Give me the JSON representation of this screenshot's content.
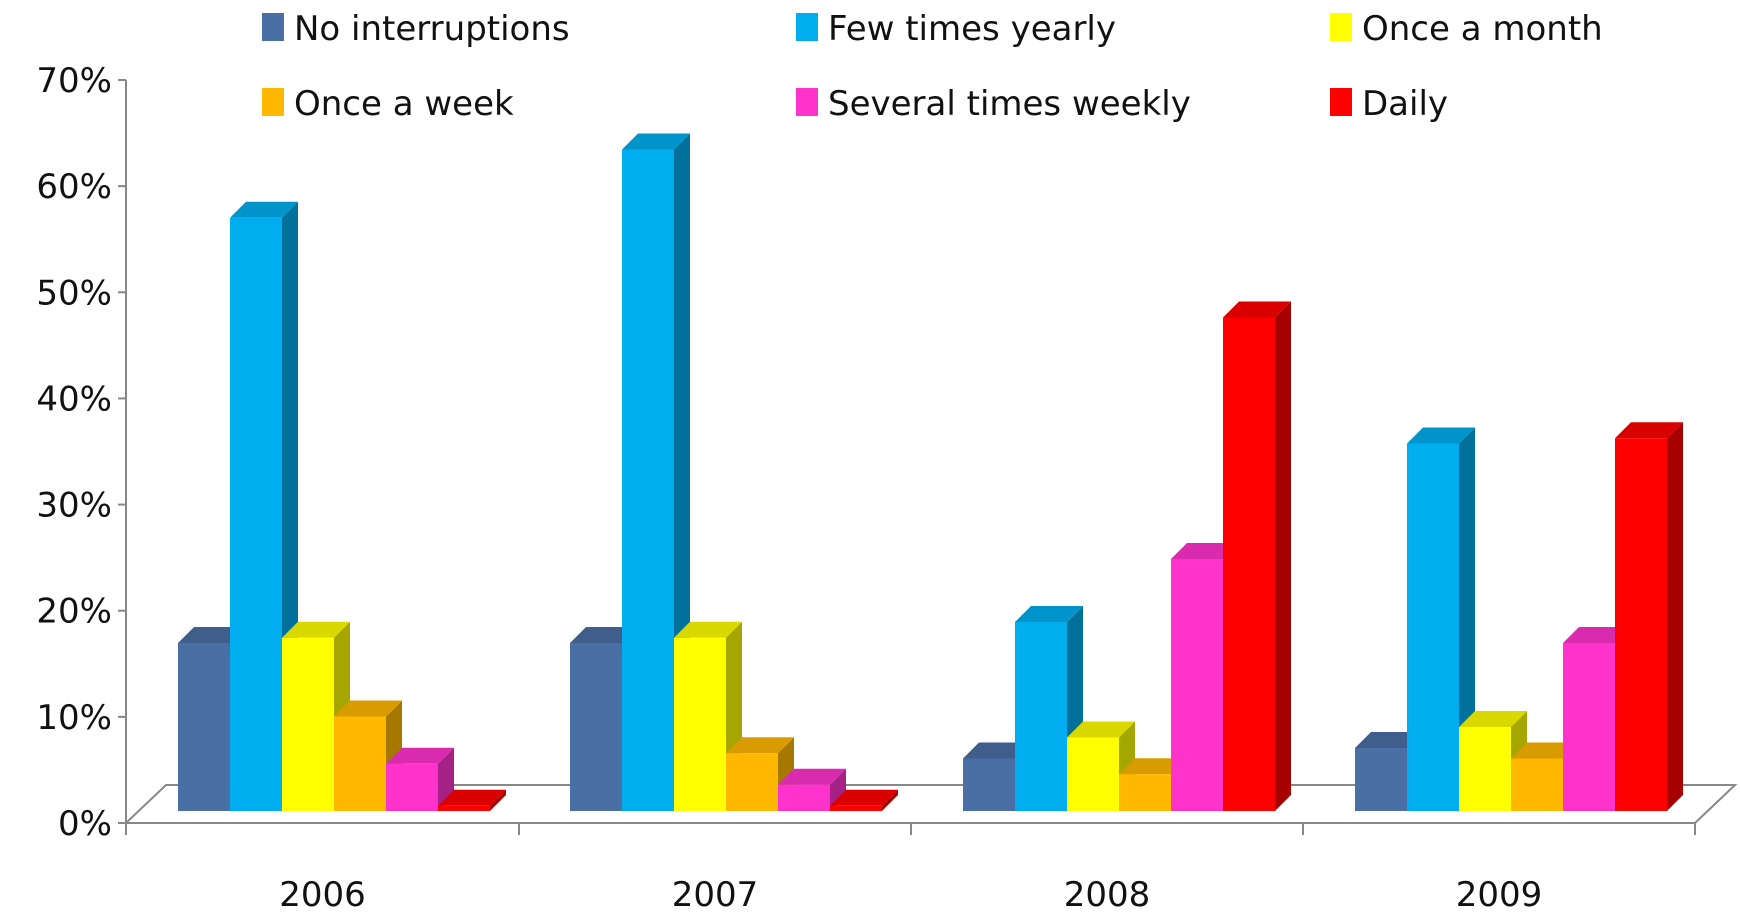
{
  "chart_data": {
    "type": "bar",
    "title": "",
    "xlabel": "",
    "ylabel": "",
    "categories": [
      "2006",
      "2007",
      "2008",
      "2009"
    ],
    "ylim": [
      0,
      70
    ],
    "yticks": [
      "0%",
      "10%",
      "20%",
      "30%",
      "40%",
      "50%",
      "60%",
      "70%"
    ],
    "grid": false,
    "legend_position": "top",
    "series": [
      {
        "name": "No interruptions",
        "color": "#4a6fa5",
        "values": [
          16,
          16,
          5,
          6
        ]
      },
      {
        "name": "Few times yearly",
        "color": "#00aeef",
        "values": [
          56.5,
          63,
          18,
          35
        ]
      },
      {
        "name": "Once a month",
        "color": "#ffff00",
        "values": [
          16.5,
          16.5,
          7,
          8
        ]
      },
      {
        "name": "Once a week",
        "color": "#ffb800",
        "values": [
          9,
          5.5,
          3.5,
          5
        ]
      },
      {
        "name": "Several times weekly",
        "color": "#ff33cc",
        "values": [
          4.5,
          2.5,
          24,
          16
        ]
      },
      {
        "name": "Daily",
        "color": "#ff0000",
        "values": [
          0.5,
          0.5,
          47,
          35.5
        ]
      }
    ]
  }
}
